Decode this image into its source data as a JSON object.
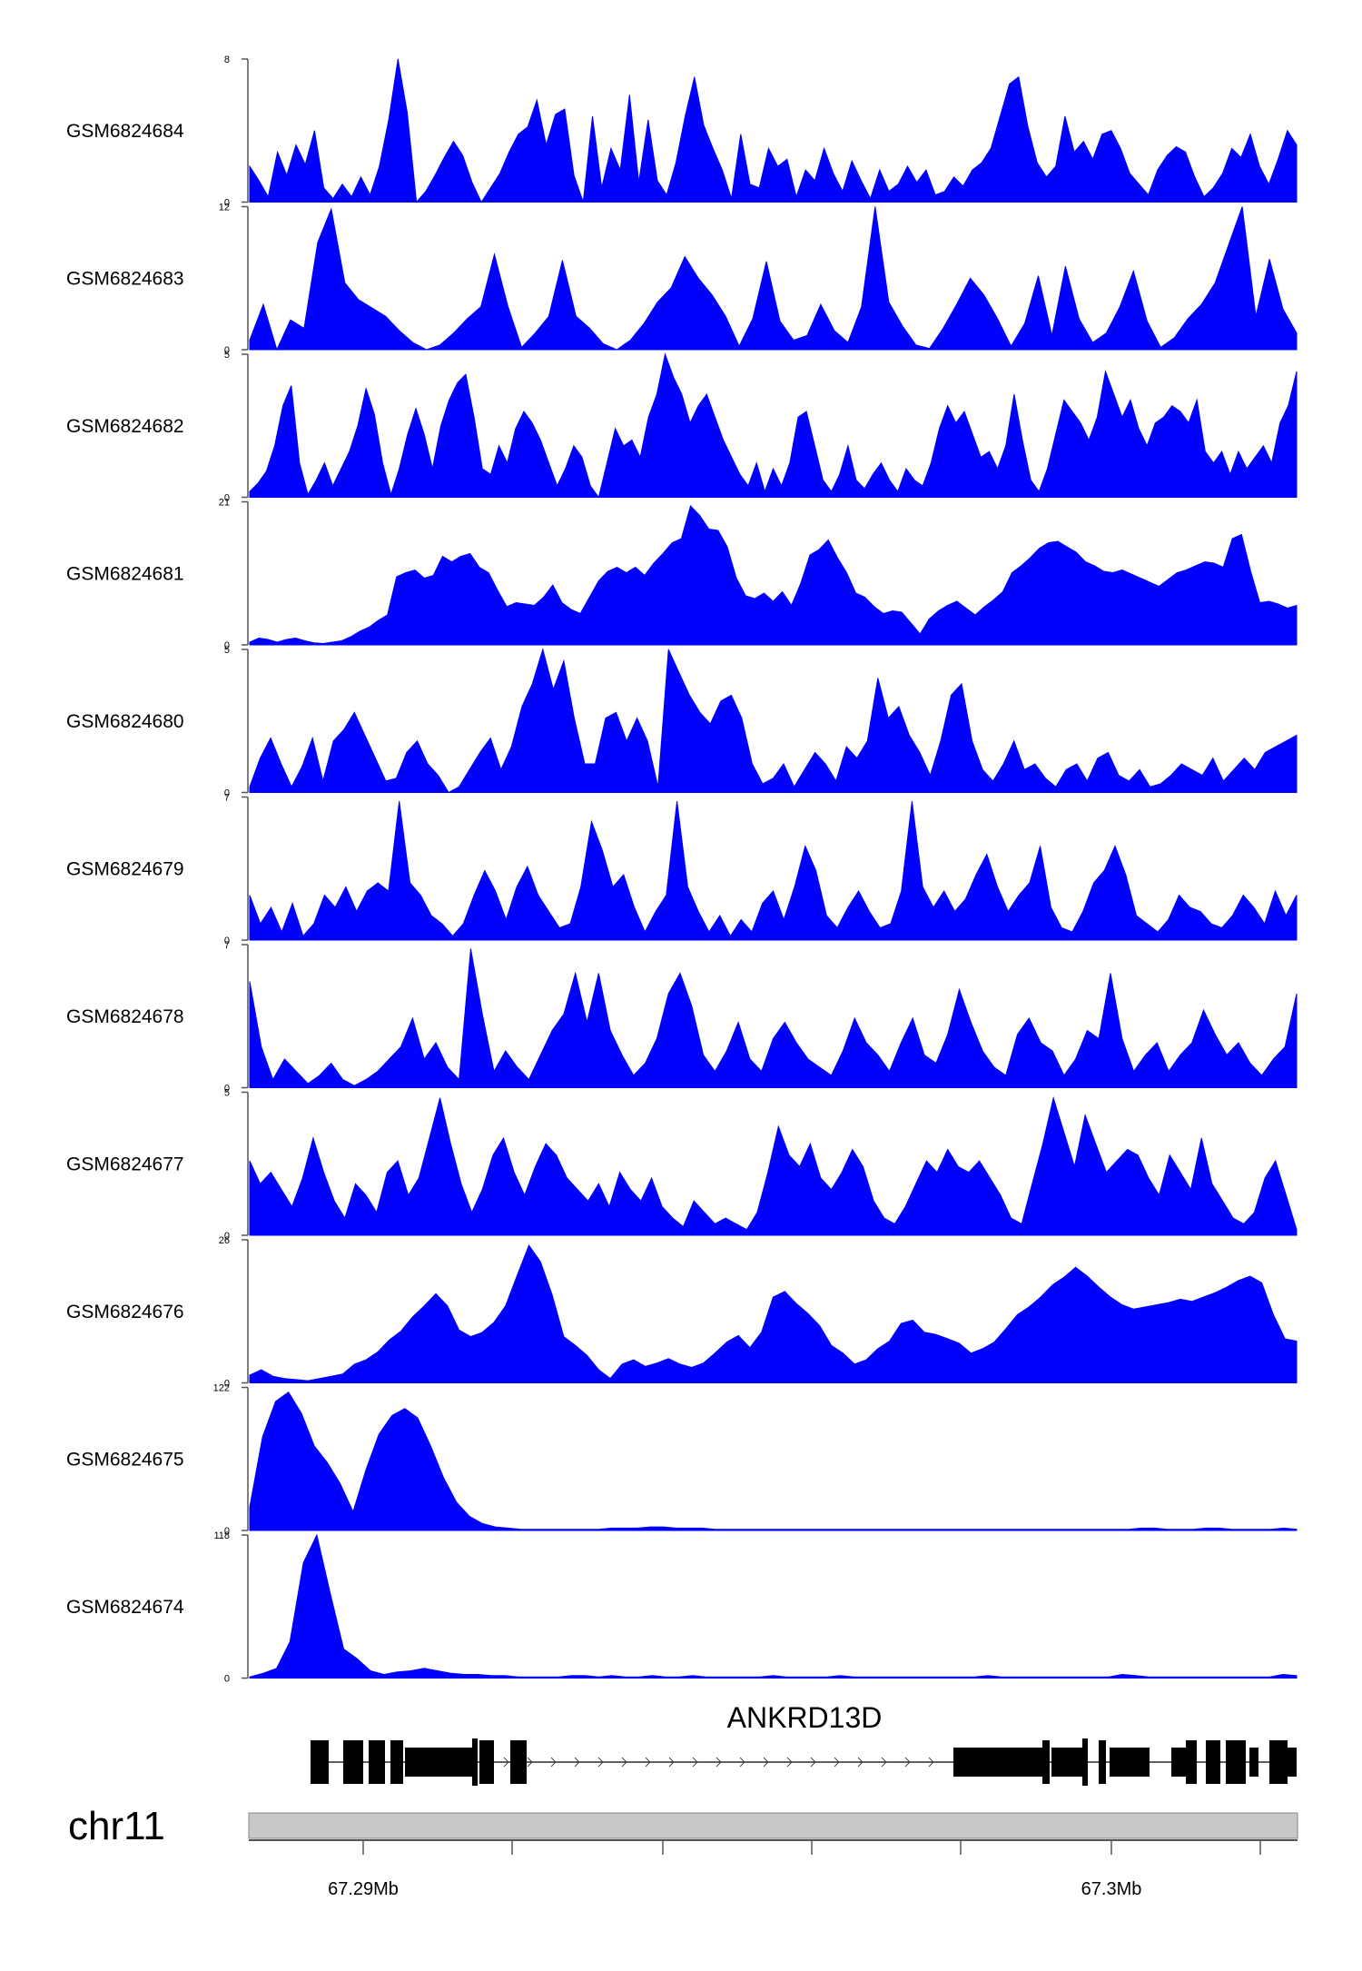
{
  "chart_data": {
    "type": "area",
    "tracks": [
      {
        "name": "GSM6824684",
        "ymax": "8",
        "y0": "0",
        "max": 8,
        "values": [
          2.0,
          1.2,
          0.3,
          2.8,
          1.5,
          3.2,
          2.1,
          4.0,
          0.8,
          0.2,
          1.0,
          0.3,
          1.4,
          0.4,
          2.0,
          4.6,
          8.0,
          5.0,
          0,
          0.6,
          1.5,
          2.5,
          3.4,
          2.6,
          1.1,
          0,
          0.8,
          1.6,
          2.8,
          3.8,
          4.2,
          5.7,
          3.2,
          4.9,
          5.2,
          1.5,
          0,
          4.8,
          0.8,
          3.0,
          1.8,
          6.0,
          1.1,
          4.6,
          1.2,
          0.4,
          2.2,
          4.8,
          7.0,
          4.3,
          3.0,
          1.8,
          0.2,
          3.8,
          1.0,
          0.8,
          3.0,
          2.0,
          2.4,
          0.3,
          1.8,
          1.2,
          3.0,
          1.6,
          0.6,
          2.3,
          1.2,
          0.2,
          1.8,
          0.6,
          1.0,
          2.0,
          1.1,
          1.8,
          0.4,
          0.6,
          1.4,
          0.9,
          1.8,
          2.2,
          3.0,
          4.8,
          6.6,
          7.0,
          4.2,
          2.2,
          1.4,
          2.0,
          4.8,
          2.8,
          3.4,
          2.4,
          3.8,
          4.0,
          3.0,
          1.6,
          1.0,
          0.4,
          1.8,
          2.6,
          3.1,
          2.8,
          1.4,
          0.3,
          0.8,
          1.6,
          3.0,
          2.5,
          3.8,
          2.0,
          1.0,
          2.4,
          4.0,
          3.2
        ]
      },
      {
        "name": "GSM6824683",
        "ymax": "12",
        "y0": "0",
        "max": 12,
        "values": [
          0.8,
          3.8,
          0,
          2.5,
          1.8,
          9.0,
          11.8,
          5.6,
          4.2,
          3.5,
          2.8,
          1.6,
          0.6,
          0,
          0.4,
          1.4,
          2.6,
          3.6,
          8.0,
          3.6,
          0.2,
          1.4,
          2.8,
          7.5,
          2.8,
          1.8,
          0.5,
          0,
          0.8,
          2.2,
          4.0,
          5.2,
          7.8,
          6.0,
          4.6,
          2.8,
          0.3,
          2.6,
          7.4,
          2.4,
          0.8,
          1.2,
          3.8,
          1.6,
          0.6,
          3.6,
          12.0,
          4.0,
          2.0,
          0.4,
          0.1,
          1.8,
          3.8,
          6.0,
          4.6,
          2.6,
          0.3,
          2.2,
          6.2,
          1.2,
          7.0,
          2.6,
          0.6,
          1.4,
          3.6,
          6.6,
          2.4,
          0.2,
          1.0,
          2.6,
          3.8,
          5.6,
          8.8,
          12.0,
          2.8,
          7.6,
          3.4,
          1.4
        ]
      },
      {
        "name": "GSM6824682",
        "ymax": "5",
        "y0": "0",
        "max": 5,
        "values": [
          0.2,
          0.5,
          0.9,
          1.8,
          3.2,
          3.9,
          1.2,
          0.1,
          0.6,
          1.2,
          0.4,
          1.0,
          1.6,
          2.5,
          3.8,
          2.9,
          1.2,
          0.1,
          1.0,
          2.2,
          3.1,
          2.2,
          1.0,
          2.5,
          3.4,
          4.0,
          4.3,
          2.8,
          1.0,
          0.8,
          1.8,
          1.2,
          2.4,
          3.0,
          2.6,
          2.0,
          1.2,
          0.4,
          1.0,
          1.8,
          1.4,
          0.4,
          0,
          1.2,
          2.4,
          1.8,
          2.0,
          1.4,
          2.8,
          3.6,
          5.0,
          4.2,
          3.6,
          2.6,
          3.2,
          3.6,
          2.8,
          2.0,
          1.4,
          0.8,
          0.4,
          1.2,
          0.2,
          1.0,
          0.4,
          1.2,
          2.8,
          3.0,
          1.8,
          0.6,
          0.2,
          0.8,
          1.8,
          0.6,
          0.3,
          0.8,
          1.2,
          0.6,
          0.2,
          1.0,
          0.6,
          0.4,
          1.2,
          2.4,
          3.2,
          2.6,
          3.0,
          2.2,
          1.4,
          1.6,
          1.0,
          1.8,
          3.6,
          2.0,
          0.6,
          0.2,
          1.0,
          2.2,
          3.4,
          3.0,
          2.6,
          2.0,
          2.8,
          4.4,
          3.6,
          2.8,
          3.4,
          2.4,
          1.8,
          2.6,
          2.8,
          3.2,
          3.0,
          2.6,
          3.4,
          1.6,
          1.2,
          1.6,
          0.8,
          1.6,
          1.0,
          1.4,
          1.8,
          1.2,
          2.6,
          3.2,
          4.4
        ]
      },
      {
        "name": "GSM6824681",
        "ymax": "21",
        "y0": "0",
        "max": 21,
        "values": [
          0.4,
          1.0,
          0.8,
          0.4,
          0.8,
          1.0,
          0.6,
          0.3,
          0.2,
          0.4,
          0.6,
          1.2,
          2.0,
          2.6,
          3.6,
          4.4,
          10.0,
          10.6,
          11.0,
          9.8,
          10.2,
          13.0,
          12.2,
          13.0,
          13.4,
          11.4,
          10.6,
          8.0,
          5.6,
          6.2,
          6.0,
          5.8,
          7.0,
          8.8,
          6.2,
          5.2,
          4.6,
          7.0,
          9.4,
          10.8,
          11.4,
          10.6,
          11.4,
          10.2,
          12.0,
          13.4,
          15.0,
          15.6,
          20.4,
          19.0,
          17.0,
          16.8,
          14.4,
          9.8,
          7.2,
          6.8,
          7.6,
          6.4,
          7.8,
          5.8,
          9.0,
          13.2,
          14.0,
          15.4,
          12.8,
          10.6,
          7.6,
          7.0,
          5.6,
          4.6,
          5.0,
          4.8,
          3.2,
          1.6,
          3.8,
          5.0,
          5.8,
          6.4,
          5.4,
          4.4,
          5.6,
          6.6,
          7.8,
          10.6,
          11.6,
          12.8,
          14.2,
          15.0,
          15.2,
          14.4,
          13.6,
          12.2,
          11.6,
          10.8,
          10.6,
          11.0,
          10.4,
          9.8,
          9.2,
          8.6,
          9.6,
          10.6,
          11.0,
          11.6,
          12.2,
          12.0,
          11.4,
          15.6,
          16.2,
          10.8,
          6.2,
          6.4,
          6.0,
          5.4,
          5.8
        ]
      },
      {
        "name": "GSM6824680",
        "ymax": "5",
        "y0": "0",
        "max": 5,
        "values": [
          0.2,
          1.2,
          1.9,
          1.0,
          0.2,
          0.9,
          1.9,
          0.4,
          1.8,
          2.2,
          2.8,
          2.0,
          1.2,
          0.4,
          0.5,
          1.4,
          1.8,
          1.0,
          0.6,
          0,
          0.2,
          0.8,
          1.4,
          1.9,
          0.8,
          1.6,
          3.0,
          3.8,
          5.0,
          3.6,
          4.6,
          2.6,
          1.0,
          1.0,
          2.6,
          2.8,
          1.8,
          2.6,
          1.8,
          0.2,
          5.0,
          4.2,
          3.4,
          2.8,
          2.4,
          3.2,
          3.4,
          2.6,
          1.0,
          0.3,
          0.5,
          1.0,
          0.2,
          0.8,
          1.4,
          1.0,
          0.4,
          1.6,
          1.2,
          1.8,
          4.0,
          2.6,
          3.0,
          2.0,
          1.4,
          0.6,
          1.8,
          3.4,
          3.8,
          1.8,
          0.8,
          0.4,
          1.0,
          1.8,
          0.8,
          1.0,
          0.5,
          0.2,
          0.8,
          1.0,
          0.4,
          1.2,
          1.4,
          0.6,
          0.4,
          0.8,
          0.2,
          0.3,
          0.6,
          1.0,
          0.8,
          0.6,
          1.2,
          0.4,
          0.8,
          1.2,
          0.8,
          1.4,
          1.6,
          1.8,
          2.0
        ]
      },
      {
        "name": "GSM6824679",
        "ymax": "7",
        "y0": "0",
        "max": 7,
        "values": [
          2.2,
          0.8,
          1.6,
          0.4,
          1.8,
          0.2,
          0.8,
          2.2,
          1.6,
          2.6,
          1.4,
          2.4,
          2.8,
          2.4,
          6.8,
          2.8,
          2.2,
          1.2,
          0.8,
          0.2,
          0.8,
          2.2,
          3.4,
          2.4,
          1.0,
          2.6,
          3.6,
          2.2,
          1.4,
          0.6,
          0.8,
          2.6,
          5.8,
          4.4,
          2.6,
          3.2,
          1.6,
          0.4,
          1.4,
          2.2,
          6.8,
          2.6,
          1.4,
          0.4,
          1.2,
          0.2,
          1.0,
          0.4,
          1.8,
          2.4,
          1.0,
          2.6,
          4.6,
          3.4,
          1.2,
          0.6,
          1.6,
          2.4,
          1.4,
          0.6,
          0.8,
          2.4,
          6.8,
          2.6,
          1.6,
          2.4,
          1.4,
          2.0,
          3.2,
          4.2,
          2.6,
          1.4,
          2.2,
          2.8,
          4.6,
          1.6,
          0.6,
          0.4,
          1.4,
          2.8,
          3.4,
          4.6,
          3.2,
          1.2,
          0.8,
          0.4,
          1.0,
          2.2,
          1.6,
          1.4,
          0.8,
          0.6,
          1.2,
          2.2,
          1.6,
          0.8,
          2.4,
          1.2,
          2.2
        ]
      },
      {
        "name": "GSM6824678",
        "ymax": "7",
        "y0": "0",
        "max": 7,
        "values": [
          5.2,
          2.0,
          0.4,
          1.4,
          0.8,
          0.2,
          0.6,
          1.2,
          0.4,
          0.1,
          0.4,
          0.8,
          1.4,
          2.0,
          3.4,
          1.4,
          2.2,
          1.0,
          0.4,
          6.8,
          3.6,
          0.8,
          1.8,
          1.0,
          0.4,
          1.6,
          2.8,
          3.6,
          5.6,
          3.2,
          5.6,
          2.8,
          1.6,
          0.6,
          1.2,
          2.4,
          4.6,
          5.6,
          4.0,
          1.6,
          0.8,
          1.8,
          3.2,
          1.4,
          0.8,
          2.4,
          3.2,
          2.2,
          1.4,
          1.0,
          0.6,
          1.8,
          3.4,
          2.2,
          1.6,
          0.8,
          2.2,
          3.4,
          1.6,
          1.2,
          2.6,
          4.8,
          3.2,
          1.8,
          1.0,
          0.6,
          2.6,
          3.4,
          2.2,
          1.8,
          0.6,
          1.4,
          2.8,
          2.4,
          5.6,
          2.4,
          0.8,
          1.6,
          2.2,
          0.8,
          1.6,
          2.2,
          3.8,
          2.6,
          1.6,
          2.2,
          1.2,
          0.6,
          1.4,
          2.0,
          4.6
        ]
      },
      {
        "name": "GSM6824677",
        "ymax": "5",
        "y0": "0",
        "max": 5,
        "values": [
          2.6,
          1.8,
          2.2,
          1.6,
          1.0,
          2.0,
          3.4,
          2.2,
          1.2,
          0.6,
          1.8,
          1.4,
          0.8,
          2.2,
          2.6,
          1.4,
          2.0,
          3.4,
          4.8,
          3.2,
          1.8,
          0.8,
          1.6,
          2.8,
          3.4,
          2.2,
          1.4,
          2.4,
          3.2,
          2.8,
          2.0,
          1.6,
          1.2,
          1.8,
          1.0,
          2.2,
          1.6,
          1.2,
          2.0,
          1.0,
          0.6,
          0.3,
          1.2,
          0.8,
          0.4,
          0.6,
          0.4,
          0.2,
          0.8,
          2.2,
          3.8,
          2.8,
          2.4,
          3.2,
          2.0,
          1.6,
          2.2,
          3.0,
          2.4,
          1.2,
          0.6,
          0.4,
          1.0,
          1.8,
          2.6,
          2.2,
          3.0,
          2.4,
          2.2,
          2.6,
          2.0,
          1.4,
          0.6,
          0.4,
          1.8,
          3.2,
          4.8,
          3.6,
          2.4,
          4.2,
          3.2,
          2.2,
          2.6,
          3.0,
          2.8,
          2.0,
          1.4,
          2.8,
          2.2,
          1.6,
          3.4,
          1.8,
          1.2,
          0.6,
          0.4,
          0.8,
          2.0,
          2.6,
          1.4,
          0.2
        ]
      },
      {
        "name": "GSM6824676",
        "ymax": "26",
        "y0": "0",
        "max": 26,
        "values": [
          1.4,
          2.4,
          1.2,
          0.8,
          0.6,
          0.4,
          0.8,
          1.2,
          1.6,
          3.4,
          4.2,
          5.6,
          7.8,
          9.4,
          12.0,
          14.0,
          16.2,
          14.0,
          9.6,
          8.4,
          9.2,
          11.0,
          14.0,
          19.6,
          25.0,
          22.0,
          16.0,
          8.4,
          6.8,
          5.0,
          2.4,
          0.8,
          3.4,
          4.2,
          3.0,
          3.6,
          4.4,
          3.4,
          2.8,
          3.6,
          5.4,
          7.4,
          8.6,
          6.4,
          9.2,
          15.6,
          16.6,
          14.4,
          12.6,
          10.4,
          6.8,
          5.4,
          3.4,
          4.2,
          6.2,
          7.6,
          10.8,
          11.4,
          9.2,
          8.8,
          8.0,
          7.2,
          5.4,
          6.2,
          7.4,
          9.8,
          12.4,
          13.8,
          15.6,
          17.8,
          19.2,
          21.0,
          19.4,
          17.4,
          15.6,
          14.2,
          13.4,
          13.8,
          14.2,
          14.6,
          15.2,
          14.8,
          15.6,
          16.4,
          17.4,
          18.6,
          19.4,
          18.2,
          12.4,
          8.0,
          7.6
        ]
      },
      {
        "name": "GSM6824675",
        "ymax": "122",
        "y0": "0",
        "max": 122,
        "values": [
          20,
          80,
          110,
          118,
          100,
          72,
          58,
          40,
          16,
          52,
          82,
          98,
          104,
          96,
          72,
          45,
          24,
          12,
          6,
          3,
          2,
          1,
          1,
          1,
          1,
          1,
          1,
          1,
          2,
          2,
          2,
          3,
          3,
          2,
          2,
          2,
          1,
          1,
          1,
          1,
          1,
          1,
          1,
          1,
          1,
          1,
          1,
          1,
          1,
          1,
          1,
          1,
          1,
          1,
          1,
          1,
          1,
          1,
          1,
          1,
          1,
          1,
          1,
          1,
          1,
          1,
          1,
          1,
          1,
          2,
          2,
          1,
          1,
          1,
          2,
          2,
          1,
          1,
          1,
          1,
          2,
          1
        ]
      },
      {
        "name": "GSM6824674",
        "ymax": "118",
        "y0": "0",
        "max": 118,
        "values": [
          1,
          4,
          8,
          30,
          95,
          118,
          70,
          24,
          16,
          6,
          3,
          5,
          6,
          8,
          6,
          4,
          3,
          3,
          2,
          2,
          1,
          1,
          1,
          1,
          2,
          2,
          1,
          2,
          1,
          1,
          2,
          1,
          1,
          2,
          1,
          1,
          1,
          1,
          1,
          2,
          1,
          1,
          1,
          1,
          2,
          1,
          1,
          1,
          1,
          1,
          1,
          1,
          1,
          1,
          1,
          2,
          1,
          1,
          1,
          1,
          1,
          1,
          1,
          1,
          1,
          3,
          2,
          1,
          1,
          1,
          1,
          1,
          1,
          1,
          1,
          1,
          1,
          3,
          2
        ]
      }
    ],
    "gene": {
      "name": "ANKRD13D"
    },
    "ideogram": {
      "chrom": "chr11"
    },
    "axis": {
      "tick_labels": [
        "67.29Mb",
        "67.3Mb"
      ]
    },
    "color": "#0000ff"
  }
}
